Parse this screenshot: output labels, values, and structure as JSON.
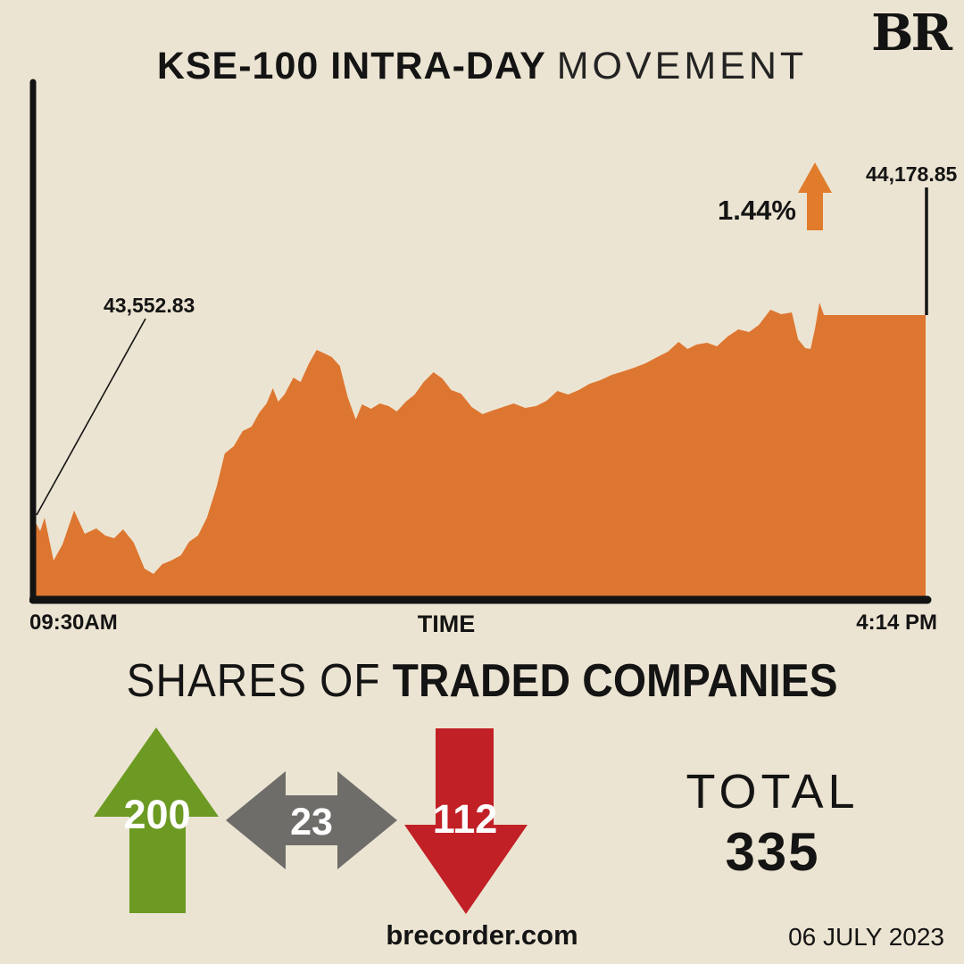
{
  "page": {
    "brand": "BR",
    "website": "brecorder.com",
    "date": "06 JULY 2023",
    "background_color": "#ece4d2"
  },
  "header": {
    "title_bold": "KSE-100 INTRA-DAY",
    "title_light": "MOVEMENT"
  },
  "chart": {
    "open_label": "43,552.83",
    "close_label": "44,178.85",
    "change_label": "1.44%",
    "x_start_label": "09:30AM",
    "x_axis_label": "TIME",
    "x_end_label": "4:14 PM",
    "area_color": "#dd7630",
    "axis_color": "#131313",
    "arrow_color": "#e07c2c"
  },
  "chart_data": {
    "type": "area",
    "title": "KSE-100 INTRA-DAY MOVEMENT",
    "xlabel": "TIME",
    "x_range": [
      "09:30AM",
      "4:14 PM"
    ],
    "open": 43552.83,
    "close": 44178.85,
    "change_pct": 1.44,
    "ylim": [
      43318,
      44240
    ],
    "grid": false,
    "points": [
      [
        0.0,
        43552.8
      ],
      [
        0.007,
        43517.3
      ],
      [
        0.012,
        43558.3
      ],
      [
        0.022,
        43427.1
      ],
      [
        0.032,
        43476.3
      ],
      [
        0.045,
        43580.2
      ],
      [
        0.057,
        43509.1
      ],
      [
        0.07,
        43525.5
      ],
      [
        0.08,
        43503.6
      ],
      [
        0.09,
        43495.4
      ],
      [
        0.1,
        43522.7
      ],
      [
        0.112,
        43481.7
      ],
      [
        0.124,
        43402.5
      ],
      [
        0.134,
        43386.1
      ],
      [
        0.144,
        43416.2
      ],
      [
        0.154,
        43427.1
      ],
      [
        0.165,
        43443.5
      ],
      [
        0.174,
        43484.5
      ],
      [
        0.184,
        43503.6
      ],
      [
        0.194,
        43558.3
      ],
      [
        0.205,
        43654.0
      ],
      [
        0.214,
        43755.1
      ],
      [
        0.224,
        43777.0
      ],
      [
        0.234,
        43823.5
      ],
      [
        0.244,
        43837.1
      ],
      [
        0.253,
        43880.9
      ],
      [
        0.261,
        43908.2
      ],
      [
        0.268,
        43954.7
      ],
      [
        0.274,
        43913.7
      ],
      [
        0.281,
        43935.5
      ],
      [
        0.291,
        43987.5
      ],
      [
        0.299,
        43973.8
      ],
      [
        0.308,
        44028.5
      ],
      [
        0.317,
        44072.2
      ],
      [
        0.326,
        44061.3
      ],
      [
        0.334,
        44050.4
      ],
      [
        0.343,
        44023.0
      ],
      [
        0.352,
        43927.3
      ],
      [
        0.361,
        43859.0
      ],
      [
        0.368,
        43905.4
      ],
      [
        0.378,
        43891.8
      ],
      [
        0.388,
        43908.2
      ],
      [
        0.398,
        43900.0
      ],
      [
        0.407,
        43883.6
      ],
      [
        0.417,
        43913.7
      ],
      [
        0.427,
        43935.5
      ],
      [
        0.437,
        43973.8
      ],
      [
        0.448,
        44003.9
      ],
      [
        0.458,
        43984.8
      ],
      [
        0.468,
        43949.2
      ],
      [
        0.479,
        43938.3
      ],
      [
        0.491,
        43897.2
      ],
      [
        0.503,
        43875.4
      ],
      [
        0.514,
        43886.3
      ],
      [
        0.526,
        43897.2
      ],
      [
        0.538,
        43908.2
      ],
      [
        0.551,
        43894.5
      ],
      [
        0.563,
        43900.0
      ],
      [
        0.575,
        43916.4
      ],
      [
        0.587,
        43946.5
      ],
      [
        0.599,
        43935.5
      ],
      [
        0.611,
        43949.2
      ],
      [
        0.623,
        43968.3
      ],
      [
        0.635,
        43979.3
      ],
      [
        0.648,
        43995.7
      ],
      [
        0.661,
        44006.6
      ],
      [
        0.673,
        44017.6
      ],
      [
        0.686,
        44031.2
      ],
      [
        0.699,
        44050.4
      ],
      [
        0.711,
        44066.8
      ],
      [
        0.723,
        44096.9
      ],
      [
        0.733,
        44075.0
      ],
      [
        0.743,
        44088.7
      ],
      [
        0.755,
        44094.1
      ],
      [
        0.766,
        44083.2
      ],
      [
        0.778,
        44113.3
      ],
      [
        0.79,
        44135.2
      ],
      [
        0.802,
        44127.0
      ],
      [
        0.813,
        44148.8
      ],
      [
        0.826,
        44195.3
      ],
      [
        0.838,
        44181.6
      ],
      [
        0.85,
        44187.1
      ],
      [
        0.857,
        44105.1
      ],
      [
        0.865,
        44077.7
      ],
      [
        0.871,
        44075.0
      ],
      [
        0.876,
        44137.9
      ],
      [
        0.881,
        44217.2
      ],
      [
        0.886,
        44178.9
      ],
      [
        1.0,
        44178.9
      ]
    ]
  },
  "shares": {
    "heading_light": "SHARES OF",
    "heading_bold": "TRADED COMPANIES",
    "advancers": "200",
    "unchanged": "23",
    "decliners": "112",
    "total_label": "TOTAL",
    "total_value": "335",
    "up_color": "#6c9a22",
    "neutral_color": "#6f6d6a",
    "down_color": "#c12026"
  }
}
